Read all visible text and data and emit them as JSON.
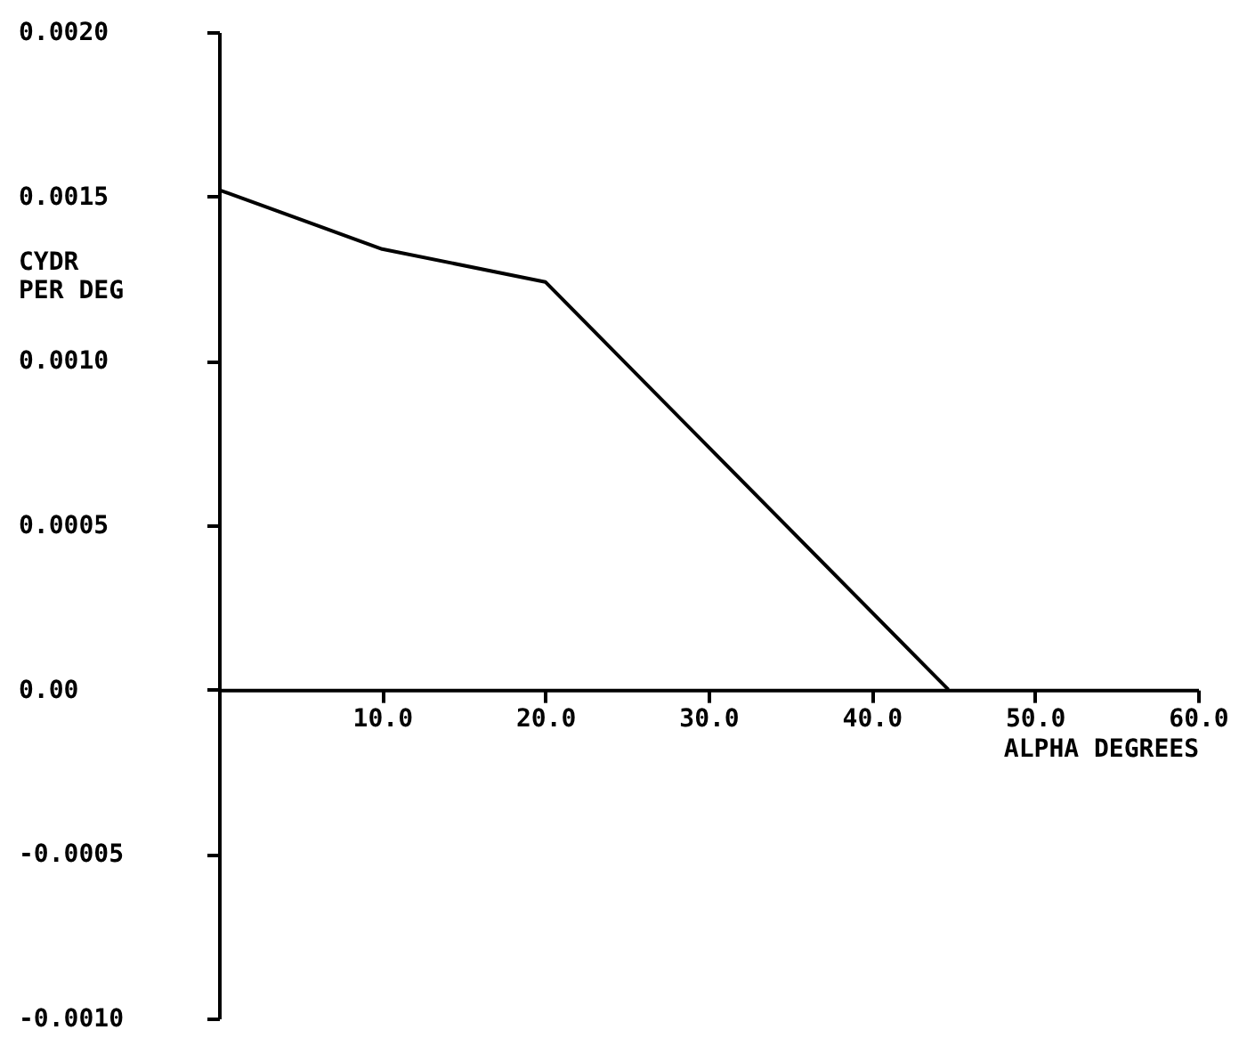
{
  "chart_data": {
    "type": "line",
    "xlabel": "ALPHA DEGREES",
    "ylabel": "CYDR\nPER DEG",
    "x": [
      0,
      10,
      20,
      44.7
    ],
    "series": [
      {
        "color": "#000000",
        "values": [
          0.00152,
          0.00134,
          0.00124,
          0
        ]
      }
    ],
    "xlim": [
      0,
      60
    ],
    "xticks": [
      {
        "value": 10,
        "label": "10.0"
      },
      {
        "value": 20,
        "label": "20.0"
      },
      {
        "value": 30,
        "label": "30.0"
      },
      {
        "value": 40,
        "label": "40.0"
      },
      {
        "value": 50,
        "label": "50.0"
      },
      {
        "value": 60,
        "label": "60.0"
      }
    ],
    "ylim": [
      -0.001,
      0.002
    ],
    "yticks": [
      {
        "value": -0.001,
        "label": "-0.0010"
      },
      {
        "value": -0.0005,
        "label": "-0.0005"
      },
      {
        "value": 0,
        "label": "0.00"
      },
      {
        "value": 0.0005,
        "label": "0.0005"
      },
      {
        "value": 0.001,
        "label": "0.0010"
      },
      {
        "value": 0.0015,
        "label": "0.0015"
      },
      {
        "value": 0.002,
        "label": "0.0020"
      }
    ],
    "grid": false,
    "marker": "none",
    "line_style": "solid"
  }
}
